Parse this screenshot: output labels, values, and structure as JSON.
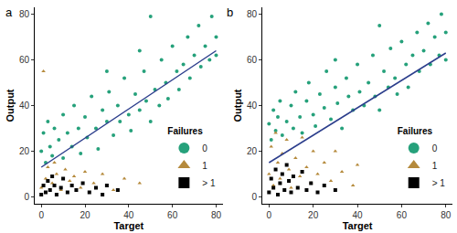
{
  "chart_data": [
    {
      "type": "scatter",
      "title": "a",
      "x_label": "Target",
      "y_label": "Output",
      "xlim": [
        -3,
        83
      ],
      "ylim": [
        -3,
        83
      ],
      "xticks": [
        0,
        20,
        40,
        60,
        80
      ],
      "yticks": [
        0,
        20,
        40,
        60,
        80
      ],
      "grid": false,
      "legend": "bottom right",
      "legend_title": "Failures",
      "series": [
        {
          "name": "0",
          "color": "#26a17b",
          "marker": "circle",
          "x": [
            0,
            1,
            2,
            3,
            4,
            5,
            6,
            8,
            10,
            10,
            12,
            14,
            15,
            17,
            18,
            20,
            21,
            23,
            25,
            26,
            28,
            30,
            31,
            33,
            35,
            36,
            38,
            40,
            41,
            43,
            45,
            47,
            48,
            50,
            52,
            54,
            55,
            57,
            58,
            60,
            62,
            63,
            65,
            67,
            68,
            70,
            72,
            73,
            75,
            77,
            78,
            80,
            80,
            50,
            30,
            45
          ],
          "values": [
            20,
            28,
            15,
            33,
            22,
            18,
            30,
            25,
            36,
            17,
            28,
            22,
            40,
            30,
            19,
            35,
            26,
            44,
            30,
            21,
            38,
            33,
            46,
            27,
            40,
            33,
            52,
            36,
            29,
            45,
            38,
            55,
            42,
            33,
            47,
            40,
            60,
            50,
            43,
            66,
            55,
            47,
            58,
            70,
            52,
            62,
            75,
            57,
            66,
            60,
            79,
            70,
            62,
            79,
            55,
            64
          ]
        },
        {
          "name": "1",
          "color": "#b58a3c",
          "marker": "triangle",
          "x": [
            0,
            2,
            3,
            5,
            7,
            9,
            11,
            13,
            15,
            18,
            20,
            24,
            28,
            33,
            38,
            45,
            1,
            6
          ],
          "values": [
            4,
            8,
            13,
            6,
            10,
            3,
            12,
            7,
            9,
            4,
            11,
            6,
            10,
            3,
            8,
            6,
            55,
            15
          ]
        },
        {
          "name": "> 1",
          "color": "#000000",
          "marker": "square",
          "x": [
            0,
            1,
            2,
            3,
            4,
            6,
            7,
            9,
            10,
            12,
            14,
            16,
            19,
            22,
            25,
            28,
            30,
            35,
            5
          ],
          "values": [
            1,
            5,
            2,
            7,
            3,
            5,
            1,
            4,
            8,
            2,
            5,
            3,
            6,
            2,
            4,
            1,
            5,
            3,
            9
          ]
        },
        {
          "type": "line",
          "color": "#2c3e8c",
          "x": [
            0,
            80
          ],
          "values": [
            13,
            64
          ]
        }
      ]
    },
    {
      "type": "scatter",
      "title": "b",
      "x_label": "Target",
      "y_label": "Output",
      "xlim": [
        -3,
        83
      ],
      "ylim": [
        -3,
        83
      ],
      "xticks": [
        0,
        20,
        40,
        60,
        80
      ],
      "yticks": [
        0,
        20,
        40,
        60,
        80
      ],
      "grid": false,
      "legend": "bottom right",
      "legend_title": "Failures",
      "series": [
        {
          "name": "0",
          "color": "#26a17b",
          "marker": "circle",
          "x": [
            0,
            1,
            2,
            3,
            4,
            5,
            6,
            8,
            10,
            11,
            12,
            14,
            15,
            17,
            18,
            20,
            21,
            23,
            25,
            26,
            28,
            30,
            31,
            33,
            35,
            36,
            38,
            40,
            41,
            43,
            45,
            47,
            48,
            50,
            52,
            54,
            55,
            57,
            58,
            60,
            62,
            63,
            65,
            67,
            68,
            70,
            72,
            73,
            75,
            77,
            78,
            80,
            80,
            50,
            30
          ],
          "values": [
            32,
            25,
            38,
            29,
            35,
            42,
            27,
            33,
            40,
            30,
            46,
            35,
            28,
            42,
            50,
            36,
            31,
            45,
            39,
            55,
            34,
            48,
            41,
            30,
            52,
            44,
            38,
            58,
            46,
            40,
            50,
            62,
            44,
            38,
            55,
            48,
            65,
            52,
            45,
            68,
            58,
            48,
            62,
            72,
            55,
            64,
            76,
            58,
            70,
            62,
            80,
            72,
            60,
            75,
            60
          ]
        },
        {
          "name": "1",
          "color": "#b58a3c",
          "marker": "triangle",
          "x": [
            0,
            1,
            2,
            3,
            4,
            5,
            6,
            8,
            9,
            10,
            12,
            14,
            15,
            17,
            19,
            20,
            22,
            25,
            28,
            30,
            33,
            38,
            40
          ],
          "values": [
            10,
            22,
            5,
            28,
            15,
            8,
            19,
            25,
            12,
            4,
            17,
            9,
            26,
            13,
            6,
            20,
            10,
            15,
            7,
            20,
            11,
            5,
            14
          ]
        },
        {
          "name": "> 1",
          "color": "#000000",
          "marker": "square",
          "x": [
            0,
            1,
            2,
            3,
            4,
            5,
            6,
            7,
            8,
            9,
            10,
            11,
            13,
            15,
            17,
            19,
            22,
            25,
            30
          ],
          "values": [
            2,
            8,
            4,
            12,
            1,
            6,
            10,
            3,
            14,
            7,
            2,
            9,
            4,
            11,
            3,
            6,
            2,
            5,
            3
          ]
        },
        {
          "type": "line",
          "color": "#2c3e8c",
          "x": [
            0,
            80
          ],
          "values": [
            15,
            63
          ]
        }
      ]
    }
  ]
}
